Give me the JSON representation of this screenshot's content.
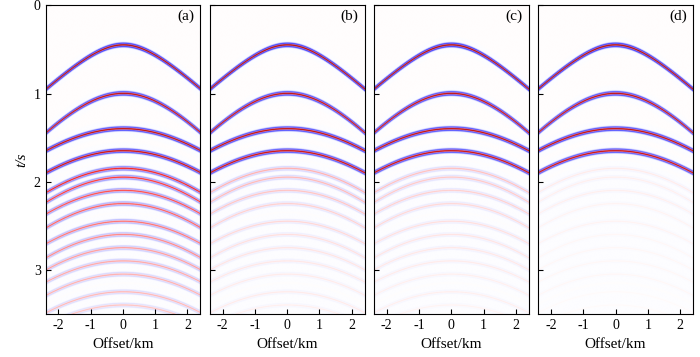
{
  "chart_data": [
    {
      "type": "seismic_gather",
      "title": "(a)",
      "x_label": "Offset/km",
      "y_label": "t/s",
      "xlim": [
        -2.4,
        2.4
      ],
      "ylim": [
        3.5,
        0
      ],
      "xticks": [
        -2,
        -1,
        0,
        1,
        2
      ],
      "yticks": [
        0,
        1,
        2,
        3
      ],
      "tick_labels": true,
      "color_range": [
        -1,
        1
      ],
      "events": [
        {
          "t0": 0.45,
          "velocity": 2.87,
          "amplitude": 1.0
        },
        {
          "t0": 1.0,
          "velocity": 2.3,
          "amplitude": 0.9
        },
        {
          "t0": 1.4,
          "velocity": 2.75,
          "amplitude": 0.9
        },
        {
          "t0": 1.65,
          "velocity": 2.55,
          "amplitude": 0.85
        },
        {
          "t0": 1.85,
          "velocity": 2.3,
          "amplitude": 0.6
        },
        {
          "t0": 1.95,
          "velocity": 2.2,
          "amplitude": 0.5
        },
        {
          "t0": 2.1,
          "velocity": 2.2,
          "amplitude": 0.45
        },
        {
          "t0": 2.25,
          "velocity": 2.1,
          "amplitude": 0.4
        },
        {
          "t0": 2.45,
          "velocity": 2.1,
          "amplitude": 0.35
        },
        {
          "t0": 2.6,
          "velocity": 2.0,
          "amplitude": 0.3
        },
        {
          "t0": 2.75,
          "velocity": 2.0,
          "amplitude": 0.25
        },
        {
          "t0": 2.9,
          "velocity": 2.0,
          "amplitude": 0.22
        },
        {
          "t0": 3.05,
          "velocity": 1.95,
          "amplitude": 0.2
        },
        {
          "t0": 3.25,
          "velocity": 1.9,
          "amplitude": 0.18
        },
        {
          "t0": 3.4,
          "velocity": 1.9,
          "amplitude": 0.15
        }
      ]
    },
    {
      "type": "seismic_gather",
      "title": "(b)",
      "x_label": "Offset/km",
      "xlim": [
        -2.4,
        2.4
      ],
      "ylim": [
        3.5,
        0
      ],
      "xticks": [
        -2,
        -1,
        0,
        1,
        2
      ],
      "yticks": [
        0,
        1,
        2,
        3
      ],
      "tick_labels": "x",
      "color_range": [
        -1,
        1
      ],
      "events": [
        {
          "t0": 0.45,
          "velocity": 2.87,
          "amplitude": 1.0
        },
        {
          "t0": 1.0,
          "velocity": 2.3,
          "amplitude": 0.9
        },
        {
          "t0": 1.4,
          "velocity": 2.75,
          "amplitude": 0.9
        },
        {
          "t0": 1.65,
          "velocity": 2.55,
          "amplitude": 0.85
        },
        {
          "t0": 1.85,
          "velocity": 2.3,
          "amplitude": 0.2
        },
        {
          "t0": 1.95,
          "velocity": 2.2,
          "amplitude": 0.18
        },
        {
          "t0": 2.1,
          "velocity": 2.2,
          "amplitude": 0.15
        },
        {
          "t0": 2.25,
          "velocity": 2.1,
          "amplitude": 0.12
        },
        {
          "t0": 2.45,
          "velocity": 2.1,
          "amplitude": 0.1
        },
        {
          "t0": 2.6,
          "velocity": 2.0,
          "amplitude": 0.08
        },
        {
          "t0": 2.75,
          "velocity": 2.0,
          "amplitude": 0.07
        },
        {
          "t0": 2.9,
          "velocity": 2.0,
          "amplitude": 0.06
        },
        {
          "t0": 3.05,
          "velocity": 1.95,
          "amplitude": 0.05
        },
        {
          "t0": 3.25,
          "velocity": 1.9,
          "amplitude": 0.05
        },
        {
          "t0": 3.4,
          "velocity": 1.9,
          "amplitude": 0.04
        }
      ]
    },
    {
      "type": "seismic_gather",
      "title": "(c)",
      "x_label": "Offset/km",
      "xlim": [
        -2.4,
        2.4
      ],
      "ylim": [
        3.5,
        0
      ],
      "xticks": [
        -2,
        -1,
        0,
        1,
        2
      ],
      "yticks": [
        0,
        1,
        2,
        3
      ],
      "tick_labels": "x",
      "color_range": [
        -1,
        1
      ],
      "events": [
        {
          "t0": 0.45,
          "velocity": 2.87,
          "amplitude": 1.0
        },
        {
          "t0": 1.0,
          "velocity": 2.3,
          "amplitude": 0.9
        },
        {
          "t0": 1.4,
          "velocity": 2.75,
          "amplitude": 0.9
        },
        {
          "t0": 1.65,
          "velocity": 2.55,
          "amplitude": 0.85
        },
        {
          "t0": 1.85,
          "velocity": 2.3,
          "amplitude": 0.16
        },
        {
          "t0": 1.95,
          "velocity": 2.2,
          "amplitude": 0.14
        },
        {
          "t0": 2.1,
          "velocity": 2.2,
          "amplitude": 0.12
        },
        {
          "t0": 2.25,
          "velocity": 2.1,
          "amplitude": 0.1
        },
        {
          "t0": 2.45,
          "velocity": 2.1,
          "amplitude": 0.08
        },
        {
          "t0": 2.6,
          "velocity": 2.0,
          "amplitude": 0.07
        },
        {
          "t0": 2.75,
          "velocity": 2.0,
          "amplitude": 0.06
        },
        {
          "t0": 2.9,
          "velocity": 2.0,
          "amplitude": 0.05
        },
        {
          "t0": 3.05,
          "velocity": 1.95,
          "amplitude": 0.04
        },
        {
          "t0": 3.25,
          "velocity": 1.9,
          "amplitude": 0.04
        },
        {
          "t0": 3.4,
          "velocity": 1.9,
          "amplitude": 0.03
        }
      ]
    },
    {
      "type": "seismic_gather",
      "title": "(d)",
      "x_label": "Offset/km",
      "xlim": [
        -2.4,
        2.4
      ],
      "ylim": [
        3.5,
        0
      ],
      "xticks": [
        -2,
        -1,
        0,
        1,
        2
      ],
      "yticks": [
        0,
        1,
        2,
        3
      ],
      "tick_labels": "x",
      "color_range": [
        -1,
        1
      ],
      "events": [
        {
          "t0": 0.45,
          "velocity": 2.87,
          "amplitude": 1.0
        },
        {
          "t0": 1.0,
          "velocity": 2.3,
          "amplitude": 0.9
        },
        {
          "t0": 1.4,
          "velocity": 2.75,
          "amplitude": 0.9
        },
        {
          "t0": 1.65,
          "velocity": 2.55,
          "amplitude": 0.85
        },
        {
          "t0": 1.85,
          "velocity": 2.3,
          "amplitude": 0.05
        },
        {
          "t0": 1.95,
          "velocity": 2.2,
          "amplitude": 0.04
        },
        {
          "t0": 2.1,
          "velocity": 2.2,
          "amplitude": 0.04
        },
        {
          "t0": 2.25,
          "velocity": 2.1,
          "amplitude": 0.03
        },
        {
          "t0": 2.45,
          "velocity": 2.1,
          "amplitude": 0.03
        },
        {
          "t0": 2.6,
          "velocity": 2.0,
          "amplitude": 0.02
        },
        {
          "t0": 2.75,
          "velocity": 2.0,
          "amplitude": 0.02
        },
        {
          "t0": 2.9,
          "velocity": 2.0,
          "amplitude": 0.02
        },
        {
          "t0": 3.05,
          "velocity": 1.95,
          "amplitude": 0.02
        },
        {
          "t0": 3.25,
          "velocity": 1.9,
          "amplitude": 0.01
        },
        {
          "t0": 3.4,
          "velocity": 1.9,
          "amplitude": 0.01
        }
      ]
    }
  ]
}
